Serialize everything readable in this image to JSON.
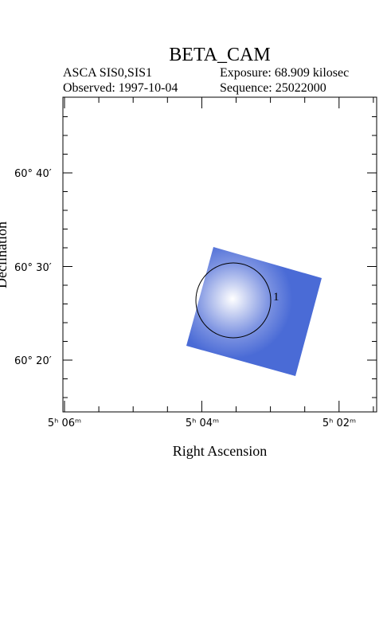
{
  "header": {
    "title": "BETA_CAM",
    "instrument": "ASCA SIS0,SIS1",
    "exposure": "Exposure: 68.909 kilosec",
    "observed": "Observed: 1997-10-04",
    "sequence": "Sequence: 25022000"
  },
  "axes": {
    "x_label": "Right Ascension",
    "y_label": "Declination",
    "x_ticks": [
      "5ʰ 06ᵐ",
      "5ʰ 04ᵐ",
      "5ʰ 02ᵐ"
    ],
    "y_ticks": [
      "60° 40′",
      "60° 30′",
      "60° 20′"
    ]
  },
  "regions": [
    {
      "label": "1"
    }
  ]
}
